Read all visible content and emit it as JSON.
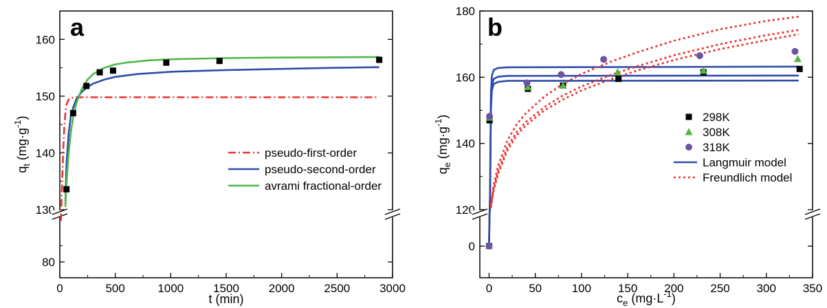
{
  "chart_data": [
    {
      "panel_label": "a",
      "type": "scatter",
      "xlabel": "t (min)",
      "ylabel": {
        "base": "q",
        "sub": "t",
        "unit_open": " (mg·g",
        "sup": "-1",
        "unit_close": ")"
      },
      "xlim": [
        0,
        3000
      ],
      "ylim": [
        80,
        165
      ],
      "axis_break_between": [
        130,
        130
      ],
      "x_ticks": [
        0,
        500,
        1000,
        1500,
        2000,
        2500,
        3000
      ],
      "y_ticks": [
        80,
        130,
        140,
        150,
        160
      ],
      "grid": false,
      "legend_position": "center-right",
      "points": {
        "name": "",
        "marker": "square",
        "color": "#000000",
        "x": [
          60,
          120,
          240,
          360,
          480,
          960,
          1440,
          2880
        ],
        "y": [
          133.6,
          147,
          151.8,
          154.2,
          154.5,
          155.9,
          156.2,
          156.4
        ]
      },
      "series": [
        {
          "name": "pseudo-first-order",
          "style": "dashdot",
          "color": "#e8332e",
          "x": [
            10,
            20,
            30,
            40,
            50,
            60,
            80,
            100,
            150,
            500,
            1000,
            2000,
            2880
          ],
          "y": [
            128,
            134,
            140,
            144.5,
            147,
            148.5,
            149.4,
            149.7,
            149.8,
            149.8,
            149.8,
            149.8,
            149.8
          ]
        },
        {
          "name": "pseudo-second-order",
          "style": "solid",
          "color": "#2e4ba8",
          "x": [
            50,
            60,
            80,
            100,
            120,
            150,
            200,
            250,
            300,
            400,
            500,
            700,
            1000,
            1500,
            2000,
            2500,
            2880
          ],
          "y": [
            131,
            138,
            143.5,
            146.5,
            148,
            149.5,
            150.8,
            151.6,
            152.2,
            152.9,
            153.4,
            153.9,
            154.3,
            154.6,
            154.8,
            155,
            155.1
          ]
        },
        {
          "name": "avrami fractional-order",
          "style": "solid",
          "color": "#4cb848",
          "x": [
            50,
            60,
            70,
            80,
            100,
            120,
            150,
            200,
            250,
            300,
            400,
            500,
            600,
            800,
            1000,
            1500,
            2000,
            2500,
            2880
          ],
          "y": [
            130.5,
            134.5,
            137.5,
            140,
            143.7,
            146.2,
            148.8,
            151.4,
            152.9,
            153.9,
            155,
            155.6,
            155.9,
            156.3,
            156.5,
            156.7,
            156.8,
            156.85,
            156.9
          ]
        }
      ]
    },
    {
      "panel_label": "b",
      "type": "scatter",
      "xlabel": {
        "base": "c",
        "sub": "e",
        "unit_open": " (mg·L",
        "sup": "-1",
        "unit_close": ")"
      },
      "ylabel": {
        "base": "q",
        "sub": "e",
        "unit_open": " (mg·g",
        "sup": "-1",
        "unit_close": ")"
      },
      "xlim": [
        -10,
        350
      ],
      "ylim": [
        -5,
        180
      ],
      "axis_break_between": [
        0,
        120
      ],
      "x_ticks": [
        0,
        50,
        100,
        150,
        200,
        250,
        300,
        350
      ],
      "y_ticks": [
        0,
        120,
        140,
        160,
        180
      ],
      "grid": false,
      "legend_position": "center-right",
      "points": [
        {
          "name": "298K",
          "marker": "square",
          "color": "#000000",
          "x": [
            0,
            0.5,
            42,
            80,
            140,
            232,
            336
          ],
          "y": [
            0,
            147,
            156.5,
            157.5,
            159.5,
            161.5,
            162.5
          ]
        },
        {
          "name": "308K",
          "marker": "triangle",
          "color": "#5ab246",
          "x": [
            0,
            0.5,
            42,
            80,
            139,
            232,
            334
          ],
          "y": [
            0,
            147.8,
            157,
            157.5,
            161.5,
            162,
            165.5
          ]
        },
        {
          "name": "318K",
          "marker": "circle",
          "color": "#6a54a3",
          "x": [
            0,
            0.5,
            41,
            78,
            124,
            228,
            331
          ],
          "y": [
            0,
            148.2,
            158.3,
            160.8,
            165.4,
            166.5,
            167.8
          ]
        }
      ],
      "series": [
        {
          "name": "Langmuir model",
          "style": "solid",
          "color": "#2e4ba8",
          "x": [
            0,
            0.5,
            1,
            2,
            3,
            5,
            10,
            20,
            335
          ],
          "y": [
            0,
            60,
            120,
            150,
            156,
            158,
            158.6,
            158.9,
            159
          ]
        },
        {
          "name": "",
          "style": "solid",
          "color": "#2e4ba8",
          "x": [
            0,
            0.5,
            1,
            2,
            3,
            5,
            10,
            20,
            335
          ],
          "y": [
            0,
            62,
            122,
            152,
            157.5,
            159.5,
            160.2,
            160.4,
            160.5
          ]
        },
        {
          "name": "",
          "style": "solid",
          "color": "#2e4ba8",
          "x": [
            0,
            0.5,
            1,
            2,
            3,
            5,
            10,
            20,
            335
          ],
          "y": [
            0,
            64,
            125,
            155,
            160.5,
            162.2,
            162.8,
            163,
            163.2
          ]
        },
        {
          "name": "Freundlich model",
          "style": "dotted",
          "color": "#e8332e",
          "x": [
            2,
            5,
            10,
            20,
            30,
            40,
            60,
            80,
            100,
            130,
            160,
            200,
            250,
            300,
            335
          ],
          "y": [
            121,
            126,
            131,
            138,
            142.5,
            145.5,
            150,
            153.3,
            156,
            159.2,
            162,
            165.2,
            168.5,
            171.2,
            173
          ]
        },
        {
          "name": "",
          "style": "dotted",
          "color": "#e8332e",
          "x": [
            2,
            5,
            10,
            20,
            30,
            40,
            60,
            80,
            100,
            130,
            160,
            200,
            250,
            300,
            335
          ],
          "y": [
            121.5,
            126.5,
            131.8,
            139,
            143.5,
            146.5,
            151,
            154.5,
            157.2,
            160.5,
            163.3,
            166.6,
            170,
            172.7,
            174.3
          ]
        },
        {
          "name": "",
          "style": "dotted",
          "color": "#e8332e",
          "x": [
            2,
            5,
            10,
            20,
            30,
            40,
            60,
            80,
            100,
            130,
            160,
            200,
            250,
            300,
            335
          ],
          "y": [
            120.5,
            127.5,
            133.5,
            141,
            145.8,
            149.2,
            154.2,
            158,
            161,
            164.5,
            167.5,
            171,
            174.5,
            177,
            178.3
          ]
        }
      ]
    }
  ]
}
